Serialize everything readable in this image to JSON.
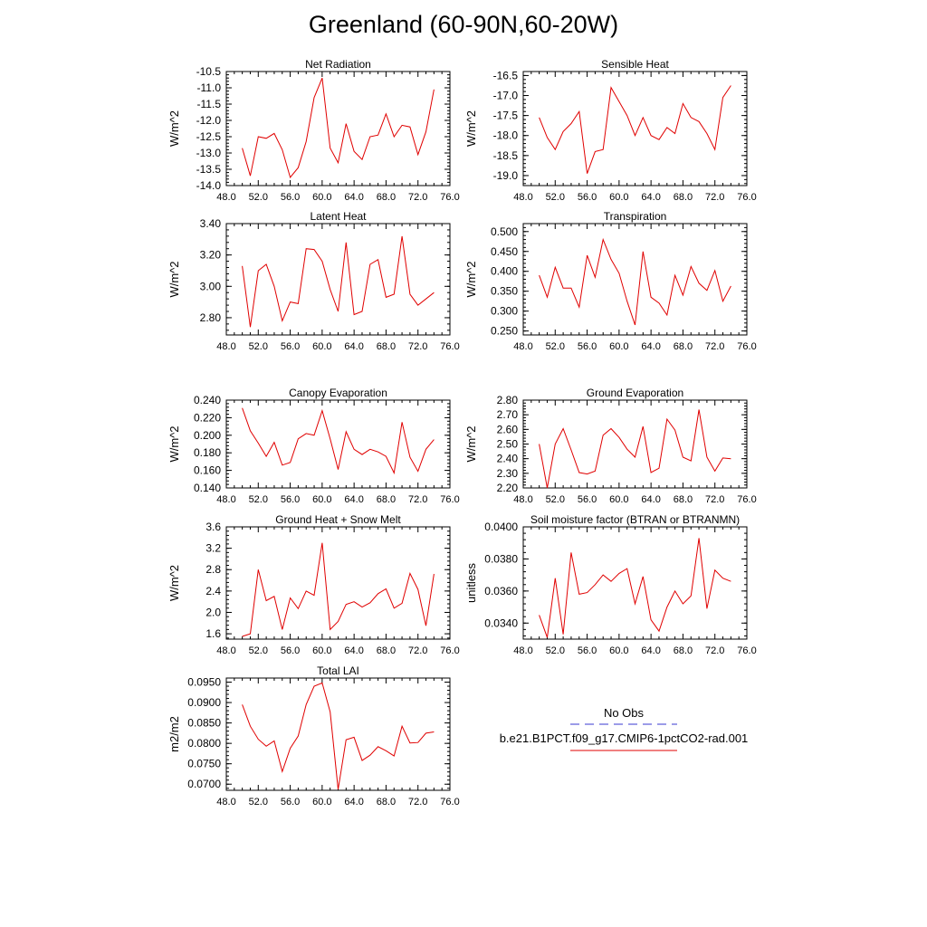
{
  "figure": {
    "title": "Greenland (60-90N,60-20W)"
  },
  "legend": {
    "obs_label": "No Obs",
    "obs_color": "#3a3ad0",
    "model_label": "b.e21.B1PCT.f09_g17.CMIP6-1pctCO2-rad.001",
    "model_color": "#e00000"
  },
  "chart_data": [
    {
      "type": "line",
      "title": "Net Radiation",
      "ylabel": "W/m^2",
      "xlim": [
        48,
        76
      ],
      "ylim": [
        -14.0,
        -10.5
      ],
      "x_ticks": [
        48,
        52,
        56,
        60,
        64,
        68,
        72,
        76
      ],
      "x_tick_labels": [
        "48.0",
        "52.0",
        "56.0",
        "60.0",
        "64.0",
        "68.0",
        "72.0",
        "76.0"
      ],
      "y_ticks": [
        -14.0,
        -13.5,
        -13.0,
        -12.5,
        -12.0,
        -11.5,
        -11.0,
        -10.5
      ],
      "y_tick_labels": [
        "-14.0",
        "-13.5",
        "-13.0",
        "-12.5",
        "-12.0",
        "-11.5",
        "-11.0",
        "-10.5"
      ],
      "series": [
        {
          "x": [
            50,
            51,
            52,
            53,
            54,
            55,
            56,
            57,
            58,
            59,
            60,
            61,
            62,
            63,
            64,
            65,
            66,
            67,
            68,
            69,
            70,
            71,
            72,
            73,
            74
          ],
          "values": [
            -12.85,
            -13.7,
            -12.5,
            -12.55,
            -12.4,
            -12.9,
            -13.75,
            -13.45,
            -12.65,
            -11.3,
            -10.7,
            -12.85,
            -13.3,
            -12.1,
            -12.95,
            -13.2,
            -12.5,
            -12.45,
            -11.8,
            -12.5,
            -12.15,
            -12.2,
            -13.05,
            -12.35,
            -11.05
          ]
        }
      ]
    },
    {
      "type": "line",
      "title": "Sensible Heat",
      "ylabel": "W/m^2",
      "xlim": [
        48,
        76
      ],
      "ylim": [
        -19.25,
        -16.4
      ],
      "x_ticks": [
        48,
        52,
        56,
        60,
        64,
        68,
        72,
        76
      ],
      "x_tick_labels": [
        "48.0",
        "52.0",
        "56.0",
        "60.0",
        "64.0",
        "68.0",
        "72.0",
        "76.0"
      ],
      "y_ticks": [
        -19.0,
        -18.5,
        -18.0,
        -17.5,
        -17.0,
        -16.5
      ],
      "y_tick_labels": [
        "-19.0",
        "-18.5",
        "-18.0",
        "-17.5",
        "-17.0",
        "-16.5"
      ],
      "series": [
        {
          "x": [
            50,
            51,
            52,
            53,
            54,
            55,
            56,
            57,
            58,
            59,
            60,
            61,
            62,
            63,
            64,
            65,
            66,
            67,
            68,
            69,
            70,
            71,
            72,
            73,
            74
          ],
          "values": [
            -17.55,
            -18.05,
            -18.35,
            -17.9,
            -17.7,
            -17.4,
            -18.95,
            -18.4,
            -18.35,
            -16.8,
            -17.15,
            -17.5,
            -18.0,
            -17.55,
            -18.0,
            -18.1,
            -17.8,
            -17.95,
            -17.2,
            -17.55,
            -17.65,
            -17.95,
            -18.35,
            -17.05,
            -16.75
          ]
        }
      ]
    },
    {
      "type": "line",
      "title": "Latent Heat",
      "ylabel": "W/m^2",
      "xlim": [
        48,
        76
      ],
      "ylim": [
        2.69,
        3.4
      ],
      "x_ticks": [
        48,
        52,
        56,
        60,
        64,
        68,
        72,
        76
      ],
      "x_tick_labels": [
        "48.0",
        "52.0",
        "56.0",
        "60.0",
        "64.0",
        "68.0",
        "72.0",
        "76.0"
      ],
      "y_ticks": [
        2.8,
        3.0,
        3.2,
        3.4
      ],
      "y_tick_labels": [
        "2.80",
        "3.00",
        "3.20",
        "3.40"
      ],
      "series": [
        {
          "x": [
            50,
            51,
            52,
            53,
            54,
            55,
            56,
            57,
            58,
            59,
            60,
            61,
            62,
            63,
            64,
            65,
            66,
            67,
            68,
            69,
            70,
            71,
            72,
            73,
            74
          ],
          "values": [
            3.13,
            2.74,
            3.1,
            3.14,
            3.0,
            2.78,
            2.9,
            2.89,
            3.24,
            3.235,
            3.16,
            2.98,
            2.84,
            3.28,
            2.82,
            2.84,
            3.14,
            3.17,
            2.93,
            2.95,
            3.32,
            2.95,
            2.88,
            2.92,
            2.96
          ]
        }
      ]
    },
    {
      "type": "line",
      "title": "Transpiration",
      "ylabel": "W/m^2",
      "xlim": [
        48,
        76
      ],
      "ylim": [
        0.24,
        0.52
      ],
      "x_ticks": [
        48,
        52,
        56,
        60,
        64,
        68,
        72,
        76
      ],
      "x_tick_labels": [
        "48.0",
        "52.0",
        "56.0",
        "60.0",
        "64.0",
        "68.0",
        "72.0",
        "76.0"
      ],
      "y_ticks": [
        0.25,
        0.3,
        0.35,
        0.4,
        0.45,
        0.5
      ],
      "y_tick_labels": [
        "0.250",
        "0.300",
        "0.350",
        "0.400",
        "0.450",
        "0.500"
      ],
      "series": [
        {
          "x": [
            50,
            51,
            52,
            53,
            54,
            55,
            56,
            57,
            58,
            59,
            60,
            61,
            62,
            63,
            64,
            65,
            66,
            67,
            68,
            69,
            70,
            71,
            72,
            73,
            74
          ],
          "values": [
            0.39,
            0.335,
            0.41,
            0.358,
            0.358,
            0.31,
            0.44,
            0.385,
            0.48,
            0.43,
            0.395,
            0.325,
            0.265,
            0.45,
            0.335,
            0.32,
            0.29,
            0.39,
            0.34,
            0.412,
            0.37,
            0.352,
            0.402,
            0.325,
            0.363
          ]
        }
      ]
    },
    {
      "type": "line",
      "title": "Canopy Evaporation",
      "ylabel": "W/m^2",
      "xlim": [
        48,
        76
      ],
      "ylim": [
        0.14,
        0.24
      ],
      "x_ticks": [
        48,
        52,
        56,
        60,
        64,
        68,
        72,
        76
      ],
      "x_tick_labels": [
        "48.0",
        "52.0",
        "56.0",
        "60.0",
        "64.0",
        "68.0",
        "72.0",
        "76.0"
      ],
      "y_ticks": [
        0.14,
        0.16,
        0.18,
        0.2,
        0.22,
        0.24
      ],
      "y_tick_labels": [
        "0.140",
        "0.160",
        "0.180",
        "0.200",
        "0.220",
        "0.240"
      ],
      "series": [
        {
          "x": [
            50,
            51,
            52,
            53,
            54,
            55,
            56,
            57,
            58,
            59,
            60,
            61,
            62,
            63,
            64,
            65,
            66,
            67,
            68,
            69,
            70,
            71,
            72,
            73,
            74
          ],
          "values": [
            0.231,
            0.205,
            0.191,
            0.176,
            0.192,
            0.166,
            0.169,
            0.196,
            0.202,
            0.2,
            0.228,
            0.196,
            0.161,
            0.204,
            0.184,
            0.178,
            0.184,
            0.181,
            0.176,
            0.157,
            0.215,
            0.175,
            0.159,
            0.184,
            0.195
          ]
        }
      ]
    },
    {
      "type": "line",
      "title": "Ground Evaporation",
      "ylabel": "W/m^2",
      "xlim": [
        48,
        76
      ],
      "ylim": [
        2.2,
        2.8
      ],
      "x_ticks": [
        48,
        52,
        56,
        60,
        64,
        68,
        72,
        76
      ],
      "x_tick_labels": [
        "48.0",
        "52.0",
        "56.0",
        "60.0",
        "64.0",
        "68.0",
        "72.0",
        "76.0"
      ],
      "y_ticks": [
        2.2,
        2.3,
        2.4,
        2.5,
        2.6,
        2.7,
        2.8
      ],
      "y_tick_labels": [
        "2.20",
        "2.30",
        "2.40",
        "2.50",
        "2.60",
        "2.70",
        "2.80"
      ],
      "series": [
        {
          "x": [
            50,
            51,
            52,
            53,
            54,
            55,
            56,
            57,
            58,
            59,
            60,
            61,
            62,
            63,
            64,
            65,
            66,
            67,
            68,
            69,
            70,
            71,
            72,
            73,
            74
          ],
          "values": [
            2.5,
            2.2,
            2.5,
            2.605,
            2.46,
            2.305,
            2.295,
            2.315,
            2.56,
            2.605,
            2.545,
            2.465,
            2.41,
            2.62,
            2.305,
            2.335,
            2.67,
            2.595,
            2.41,
            2.385,
            2.735,
            2.41,
            2.315,
            2.405,
            2.4
          ]
        }
      ]
    },
    {
      "type": "line",
      "title": "Ground Heat + Snow Melt",
      "ylabel": "W/m^2",
      "xlim": [
        48,
        76
      ],
      "ylim": [
        1.5,
        3.6
      ],
      "x_ticks": [
        48,
        52,
        56,
        60,
        64,
        68,
        72,
        76
      ],
      "x_tick_labels": [
        "48.0",
        "52.0",
        "56.0",
        "60.0",
        "64.0",
        "68.0",
        "72.0",
        "76.0"
      ],
      "y_ticks": [
        1.6,
        2.0,
        2.4,
        2.8,
        3.2,
        3.6
      ],
      "y_tick_labels": [
        "1.6",
        "2.0",
        "2.4",
        "2.8",
        "3.2",
        "3.6"
      ],
      "series": [
        {
          "x": [
            50,
            51,
            52,
            53,
            54,
            55,
            56,
            57,
            58,
            59,
            60,
            61,
            62,
            63,
            64,
            65,
            66,
            67,
            68,
            69,
            70,
            71,
            72,
            73,
            74
          ],
          "values": [
            1.55,
            1.6,
            2.8,
            2.22,
            2.3,
            1.68,
            2.27,
            2.07,
            2.4,
            2.32,
            3.3,
            1.68,
            1.83,
            2.15,
            2.2,
            2.1,
            2.18,
            2.35,
            2.44,
            2.08,
            2.17,
            2.73,
            2.43,
            1.75,
            2.72
          ]
        }
      ]
    },
    {
      "type": "line",
      "title": "Soil moisture factor (BTRAN or BTRANMN)",
      "ylabel": "unitless",
      "xlim": [
        48,
        76
      ],
      "ylim": [
        0.033,
        0.04
      ],
      "x_ticks": [
        48,
        52,
        56,
        60,
        64,
        68,
        72,
        76
      ],
      "x_tick_labels": [
        "48.0",
        "52.0",
        "56.0",
        "60.0",
        "64.0",
        "68.0",
        "72.0",
        "76.0"
      ],
      "y_ticks": [
        0.034,
        0.036,
        0.038,
        0.04
      ],
      "y_tick_labels": [
        "0.0340",
        "0.0360",
        "0.0380",
        "0.0400"
      ],
      "series": [
        {
          "x": [
            50,
            51,
            52,
            53,
            54,
            55,
            56,
            57,
            58,
            59,
            60,
            61,
            62,
            63,
            64,
            65,
            66,
            67,
            68,
            69,
            70,
            71,
            72,
            73,
            74
          ],
          "values": [
            0.0345,
            0.0331,
            0.0368,
            0.0333,
            0.0384,
            0.0358,
            0.0359,
            0.0364,
            0.037,
            0.0366,
            0.0371,
            0.0374,
            0.0352,
            0.0369,
            0.0342,
            0.0335,
            0.035,
            0.036,
            0.0352,
            0.0357,
            0.0393,
            0.0349,
            0.0373,
            0.0368,
            0.0366
          ]
        }
      ]
    },
    {
      "type": "line",
      "title": "Total LAI",
      "ylabel": "m2/m2",
      "xlim": [
        48,
        76
      ],
      "ylim": [
        0.0685,
        0.096
      ],
      "x_ticks": [
        48,
        52,
        56,
        60,
        64,
        68,
        72,
        76
      ],
      "x_tick_labels": [
        "48.0",
        "52.0",
        "56.0",
        "60.0",
        "64.0",
        "68.0",
        "72.0",
        "76.0"
      ],
      "y_ticks": [
        0.07,
        0.075,
        0.08,
        0.085,
        0.09,
        0.095
      ],
      "y_tick_labels": [
        "0.0700",
        "0.0750",
        "0.0800",
        "0.0850",
        "0.0900",
        "0.0950"
      ],
      "series": [
        {
          "x": [
            50,
            51,
            52,
            53,
            54,
            55,
            56,
            57,
            58,
            59,
            60,
            61,
            62,
            63,
            64,
            65,
            66,
            67,
            68,
            69,
            70,
            71,
            72,
            73,
            74
          ],
          "values": [
            0.0895,
            0.0842,
            0.081,
            0.0793,
            0.0806,
            0.0731,
            0.0788,
            0.0818,
            0.0895,
            0.094,
            0.0948,
            0.0877,
            0.0687,
            0.0809,
            0.0815,
            0.0758,
            0.0771,
            0.0792,
            0.0782,
            0.0769,
            0.0842,
            0.0801,
            0.0802,
            0.0825,
            0.0828
          ]
        }
      ]
    }
  ]
}
